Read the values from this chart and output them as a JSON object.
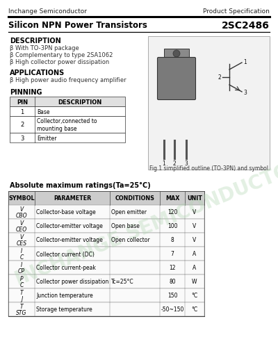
{
  "header_company": "Inchange Semiconductor",
  "header_right": "Product Specification",
  "title_left": "Silicon NPN Power Transistors",
  "title_right": "2SC2486",
  "bg_color": "#ffffff",
  "description_title": "DESCRIPTION",
  "description_items": [
    "β With TO-3PN package",
    "β Complementary to type 2SA1062",
    "β High collector power dissipation"
  ],
  "applications_title": "APPLICATIONS",
  "applications_items": [
    "β High power audio frequency amplifier"
  ],
  "pinning_title": "PINNING",
  "pin_headers": [
    "PIN",
    "DESCRIPTION"
  ],
  "pin_row1": [
    "1",
    "Base"
  ],
  "pin_row2": [
    "2",
    "Collector,connected to\nmounting base"
  ],
  "pin_row3": [
    "3",
    "Emitter"
  ],
  "fig_caption": "Fig.1 simplified outline (TO-3PN) and symbol",
  "abs_max_title": "Absolute maximum ratings(Ta=25°C)",
  "table_headers": [
    "SYMBOL",
    "PARAMETER",
    "CONDITIONS",
    "MAX",
    "UNIT"
  ],
  "table_rows": [
    [
      "V\nCBO",
      "Collector-base voltage",
      "Open emitter",
      "120",
      "V"
    ],
    [
      "V\nCEO",
      "Collector-emitter voltage",
      "Open base",
      "100",
      "V"
    ],
    [
      "V\nCES",
      "Collector-emitter voltage",
      "Open collector",
      "8",
      "V"
    ],
    [
      "I\nC",
      "Collector current (DC)",
      "",
      "7",
      "A"
    ],
    [
      "I\nCP",
      "Collector current-peak",
      "",
      "12",
      "A"
    ],
    [
      "P\nC",
      "Collector power dissipation",
      "Tc=25°C",
      "80",
      "W"
    ],
    [
      "T\nJ",
      "Junction temperature",
      "",
      "150",
      "°C"
    ],
    [
      "T\nSTG",
      "Storage temperature",
      "",
      "-50~150",
      "°C"
    ]
  ],
  "watermark_text": "INCHANGE SEMICONDUCTOR",
  "watermark_color": "#b0d4b0",
  "watermark_alpha": 0.35
}
